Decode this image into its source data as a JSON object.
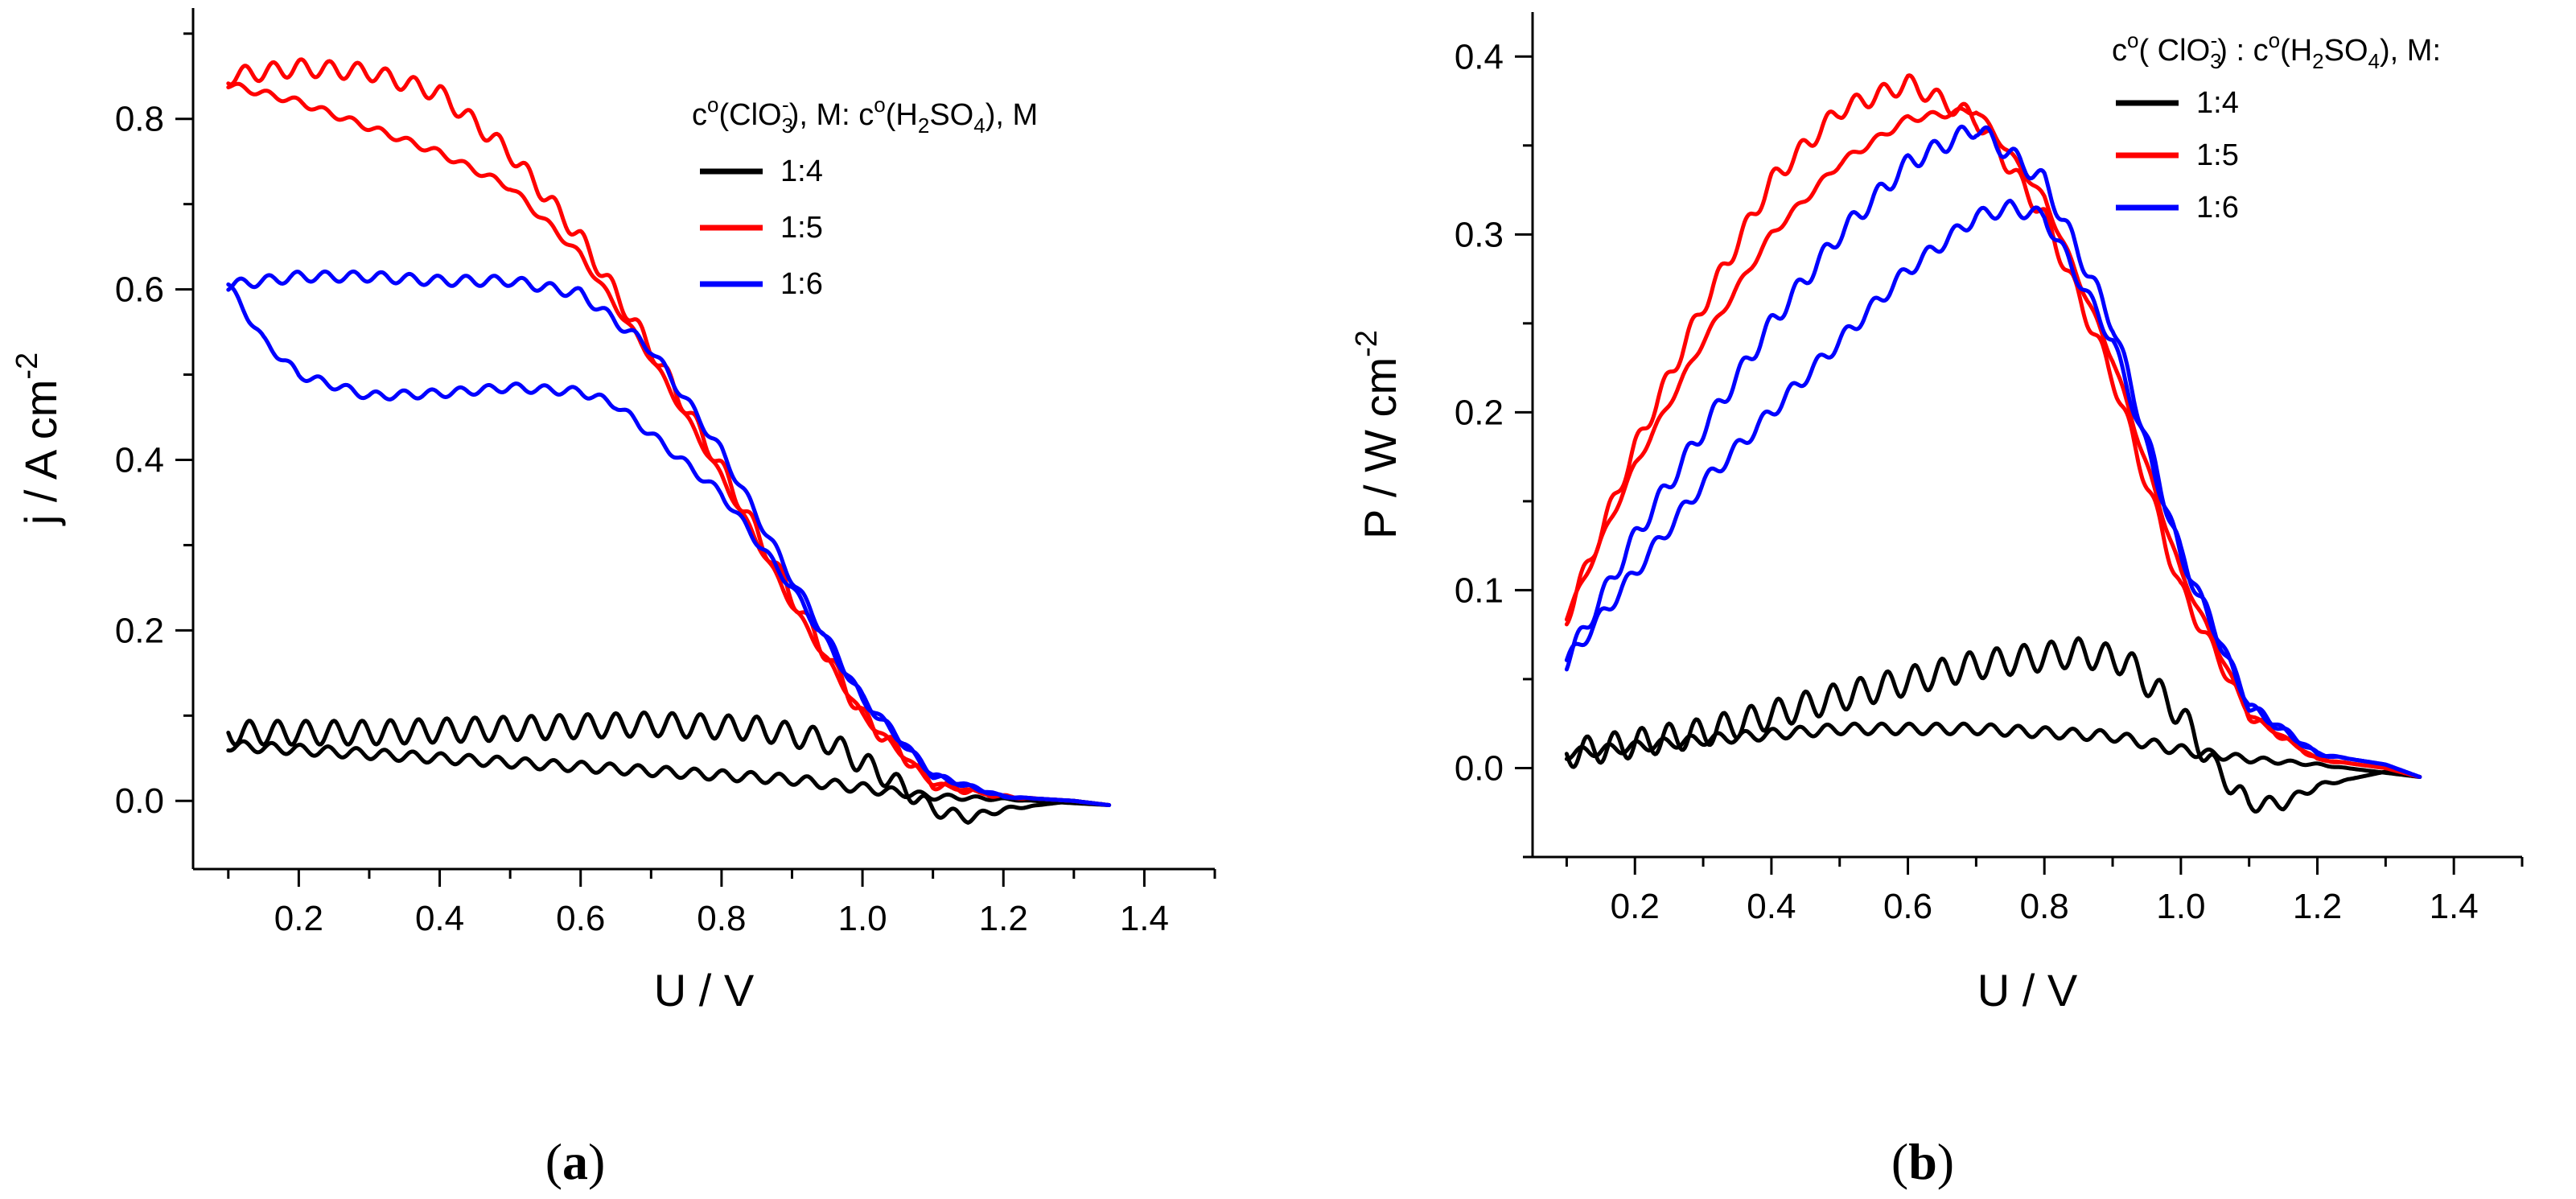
{
  "chart_data": [
    {
      "type": "line",
      "panel_label": "a",
      "xlabel": "U / V",
      "ylabel": {
        "base": "j / A cm",
        "sup": "-2"
      },
      "xlim": [
        0.05,
        1.5
      ],
      "ylim": [
        -0.08,
        0.93
      ],
      "xticks": [
        0.2,
        0.4,
        0.6,
        0.8,
        1.0,
        1.2,
        1.4
      ],
      "yticks": [
        0.0,
        0.2,
        0.4,
        0.6,
        0.8
      ],
      "xtick_labels": [
        "0.2",
        "0.4",
        "0.6",
        "0.8",
        "1.0",
        "1.2",
        "1.4"
      ],
      "ytick_labels": [
        "0.0",
        "0.2",
        "0.4",
        "0.6",
        "0.8"
      ],
      "legend": {
        "title_parts": [
          "c",
          "o",
          "(ClO",
          "3",
          "-",
          "), M: c",
          "o",
          "(H",
          "2",
          "SO",
          "4",
          "), M"
        ],
        "location": "top-right"
      },
      "series": [
        {
          "name": "1:4",
          "color": "#000000",
          "branches": [
            {
              "x": [
                0.1,
                0.3,
                0.5,
                0.7,
                0.85,
                0.95,
                1.05,
                1.1,
                1.15,
                1.2,
                1.3,
                1.35
              ],
              "y": [
                0.08,
                0.08,
                0.085,
                0.09,
                0.085,
                0.07,
                0.02,
                -0.01,
                -0.02,
                -0.01,
                0.0,
                -0.005
              ],
              "ripple": 0.014
            },
            {
              "x": [
                0.1,
                0.3,
                0.5,
                0.7,
                0.9,
                1.0,
                1.1,
                1.2,
                1.35
              ],
              "y": [
                0.065,
                0.055,
                0.045,
                0.035,
                0.025,
                0.015,
                0.005,
                0.002,
                -0.005
              ],
              "ripple": 0.006
            }
          ]
        },
        {
          "name": "1:5",
          "color": "#ff0000",
          "branches": [
            {
              "x": [
                0.1,
                0.2,
                0.3,
                0.4,
                0.5,
                0.6,
                0.7,
                0.8,
                0.9,
                1.0,
                1.1,
                1.2,
                1.3,
                1.35
              ],
              "y": [
                0.85,
                0.86,
                0.855,
                0.83,
                0.76,
                0.66,
                0.53,
                0.39,
                0.24,
                0.1,
                0.02,
                0.005,
                0.0,
                -0.005
              ],
              "ripple": 0.01
            },
            {
              "x": [
                0.1,
                0.2,
                0.3,
                0.4,
                0.5,
                0.6,
                0.7,
                0.8,
                0.9,
                1.0,
                1.1,
                1.2,
                1.3,
                1.35
              ],
              "y": [
                0.84,
                0.82,
                0.79,
                0.76,
                0.72,
                0.64,
                0.52,
                0.38,
                0.23,
                0.1,
                0.02,
                0.005,
                0.0,
                -0.005
              ],
              "ripple": 0.004
            }
          ]
        },
        {
          "name": "1:6",
          "color": "#0000ff",
          "branches": [
            {
              "x": [
                0.1,
                0.2,
                0.3,
                0.4,
                0.5,
                0.6,
                0.7,
                0.8,
                0.9,
                1.0,
                1.1,
                1.2,
                1.3,
                1.35
              ],
              "y": [
                0.605,
                0.615,
                0.615,
                0.61,
                0.61,
                0.595,
                0.53,
                0.41,
                0.26,
                0.12,
                0.03,
                0.005,
                0.0,
                -0.005
              ],
              "ripple": 0.006
            },
            {
              "x": [
                0.1,
                0.15,
                0.2,
                0.3,
                0.4,
                0.5,
                0.6,
                0.65,
                0.7,
                0.8,
                0.9,
                1.0,
                1.1,
                1.2,
                1.3,
                1.35
              ],
              "y": [
                0.605,
                0.54,
                0.5,
                0.475,
                0.478,
                0.485,
                0.48,
                0.465,
                0.43,
                0.36,
                0.25,
                0.12,
                0.03,
                0.005,
                0.0,
                -0.005
              ],
              "ripple": 0.005
            }
          ]
        }
      ]
    },
    {
      "type": "line",
      "panel_label": "b",
      "xlabel": "U / V",
      "ylabel": {
        "base": "P / W cm",
        "sup": "-2"
      },
      "xlim": [
        0.05,
        1.5
      ],
      "ylim": [
        -0.05,
        0.425
      ],
      "xticks": [
        0.2,
        0.4,
        0.6,
        0.8,
        1.0,
        1.2,
        1.4
      ],
      "yticks": [
        0.0,
        0.1,
        0.2,
        0.3,
        0.4
      ],
      "xtick_labels": [
        "0.2",
        "0.4",
        "0.6",
        "0.8",
        "1.0",
        "1.2",
        "1.4"
      ],
      "ytick_labels": [
        "0.0",
        "0.1",
        "0.2",
        "0.3",
        "0.4"
      ],
      "legend": {
        "title_parts": [
          "c",
          "o",
          "( ClO",
          "3",
          "-",
          ") : c",
          "o",
          "(H",
          "2",
          "SO",
          "4",
          "), M:"
        ],
        "location": "top-right"
      },
      "series": [
        {
          "name": "1:4",
          "color": "#000000",
          "branches": [
            {
              "x": [
                0.1,
                0.3,
                0.5,
                0.7,
                0.85,
                0.92,
                1.0,
                1.05,
                1.1,
                1.15,
                1.2,
                1.3,
                1.35
              ],
              "y": [
                0.008,
                0.02,
                0.04,
                0.058,
                0.065,
                0.06,
                0.03,
                0.0,
                -0.02,
                -0.02,
                -0.01,
                -0.002,
                -0.005
              ],
              "ripple": 0.008
            },
            {
              "x": [
                0.1,
                0.3,
                0.5,
                0.7,
                0.9,
                1.0,
                1.1,
                1.2,
                1.35
              ],
              "y": [
                0.008,
                0.016,
                0.022,
                0.022,
                0.018,
                0.01,
                0.005,
                0.002,
                -0.005
              ],
              "ripple": 0.003
            }
          ]
        },
        {
          "name": "1:5",
          "color": "#ff0000",
          "branches": [
            {
              "x": [
                0.1,
                0.2,
                0.3,
                0.4,
                0.5,
                0.6,
                0.7,
                0.8,
                0.9,
                1.0,
                1.1,
                1.2,
                1.3,
                1.35
              ],
              "y": [
                0.085,
                0.18,
                0.26,
                0.33,
                0.37,
                0.385,
                0.365,
                0.31,
                0.22,
                0.1,
                0.03,
                0.005,
                0.0,
                -0.005
              ],
              "ripple": 0.005
            },
            {
              "x": [
                0.1,
                0.2,
                0.3,
                0.4,
                0.5,
                0.6,
                0.7,
                0.8,
                0.9,
                1.0,
                1.1,
                1.2,
                1.3,
                1.35
              ],
              "y": [
                0.085,
                0.17,
                0.24,
                0.3,
                0.34,
                0.365,
                0.37,
                0.32,
                0.23,
                0.11,
                0.03,
                0.005,
                0.0,
                -0.005
              ],
              "ripple": 0.002
            }
          ]
        },
        {
          "name": "1:6",
          "color": "#0000ff",
          "branches": [
            {
              "x": [
                0.1,
                0.2,
                0.3,
                0.4,
                0.5,
                0.6,
                0.7,
                0.8,
                0.9,
                1.0,
                1.1,
                1.2,
                1.3,
                1.35
              ],
              "y": [
                0.06,
                0.13,
                0.19,
                0.25,
                0.3,
                0.34,
                0.36,
                0.33,
                0.25,
                0.12,
                0.035,
                0.008,
                0.002,
                -0.005
              ],
              "ripple": 0.005
            },
            {
              "x": [
                0.1,
                0.2,
                0.3,
                0.4,
                0.5,
                0.6,
                0.7,
                0.75,
                0.8,
                0.9,
                1.0,
                1.1,
                1.2,
                1.3,
                1.35
              ],
              "y": [
                0.06,
                0.11,
                0.16,
                0.2,
                0.24,
                0.28,
                0.31,
                0.315,
                0.31,
                0.24,
                0.12,
                0.035,
                0.008,
                0.002,
                -0.005
              ],
              "ripple": 0.004
            }
          ]
        }
      ]
    }
  ]
}
